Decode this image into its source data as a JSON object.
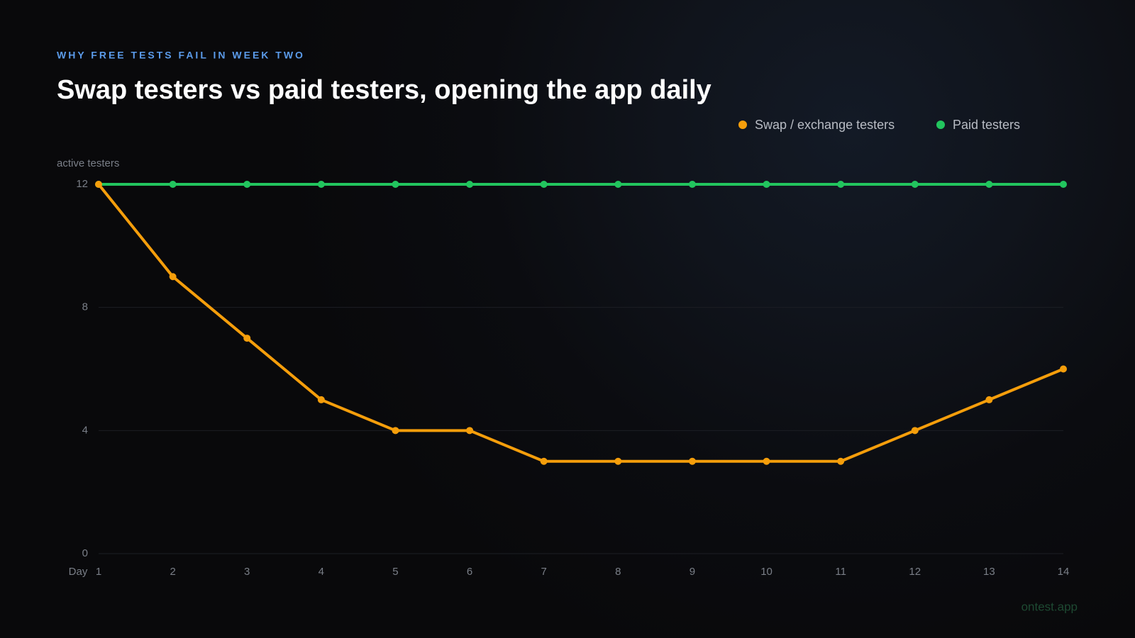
{
  "chart_data": {
    "type": "line",
    "kicker": "WHY FREE TESTS FAIL IN WEEK TWO",
    "title": "Swap testers vs paid testers, opening the app daily",
    "ylabel": "active testers",
    "xlabel": "Day",
    "footer": "ontest.app",
    "x": [
      1,
      2,
      3,
      4,
      5,
      6,
      7,
      8,
      9,
      10,
      11,
      12,
      13,
      14
    ],
    "xlim": [
      1,
      14
    ],
    "xticks": [
      1,
      2,
      3,
      4,
      5,
      6,
      7,
      8,
      9,
      10,
      11,
      12,
      13,
      14
    ],
    "ylim": [
      0,
      12
    ],
    "yticks": [
      0,
      4,
      8,
      12
    ],
    "grid": true,
    "legend": "top-right",
    "series": [
      {
        "name": "Swap / exchange testers",
        "color": "#f59e0b",
        "values": [
          12,
          9,
          7,
          5,
          4,
          4,
          3,
          3,
          3,
          3,
          3,
          4,
          5,
          6
        ]
      },
      {
        "name": "Paid testers",
        "color": "#22c55e",
        "values": [
          12,
          12,
          12,
          12,
          12,
          12,
          12,
          12,
          12,
          12,
          12,
          12,
          12,
          12
        ]
      }
    ]
  }
}
